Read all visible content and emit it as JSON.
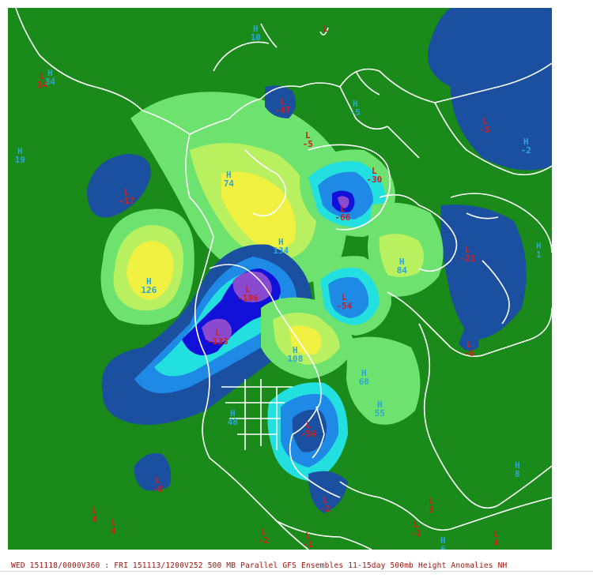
{
  "caption": "WED 151118/0000V360 : FRI 151113/1200V252  500 MB Parallel GFS Ensembles 11-15day 500mb Height Anomalies NH",
  "colors": {
    "background": "#1a8a1a",
    "deep_low": "#8a4ad0",
    "low_core": "#1010d8",
    "low_mid": "#1e8ae6",
    "low_edge": "#1b4fa0",
    "neutral_light": "#22e0e0",
    "high_light": "#6ee26e",
    "high_mid": "#b8f060",
    "high_core": "#f0f040",
    "outline": "#ffffff",
    "high_label": "#2aa6d8",
    "low_label": "#d0201c",
    "caption": "#a0150e"
  },
  "markers": [
    {
      "type": "H",
      "value": "10"
    },
    {
      "type": "L",
      "value": ""
    },
    {
      "type": "L",
      "value": "14"
    },
    {
      "type": "H",
      "value": "34"
    },
    {
      "type": "H",
      "value": "19"
    },
    {
      "type": "L",
      "value": "-17"
    },
    {
      "type": "L",
      "value": "-47"
    },
    {
      "type": "H",
      "value": "-5"
    },
    {
      "type": "L",
      "value": "-5"
    },
    {
      "type": "L",
      "value": "-5"
    },
    {
      "type": "H",
      "value": "-2"
    },
    {
      "type": "H",
      "value": "74"
    },
    {
      "type": "L",
      "value": "-30"
    },
    {
      "type": "L",
      "value": "-66"
    },
    {
      "type": "H",
      "value": "134"
    },
    {
      "type": "H",
      "value": "126"
    },
    {
      "type": "L",
      "value": "-196"
    },
    {
      "type": "L",
      "value": "-133"
    },
    {
      "type": "L",
      "value": "-54"
    },
    {
      "type": "H",
      "value": "84"
    },
    {
      "type": "L",
      "value": "-21"
    },
    {
      "type": "H",
      "value": "1"
    },
    {
      "type": "H",
      "value": "108"
    },
    {
      "type": "H",
      "value": "60"
    },
    {
      "type": "H",
      "value": "55"
    },
    {
      "type": "H",
      "value": "48"
    },
    {
      "type": "L",
      "value": "-56"
    },
    {
      "type": "L",
      "value": "-6"
    },
    {
      "type": "L",
      "value": "-8"
    },
    {
      "type": "H",
      "value": "8"
    },
    {
      "type": "L",
      "value": "-2"
    },
    {
      "type": "L",
      "value": "4"
    },
    {
      "type": "L",
      "value": "4"
    },
    {
      "type": "L",
      "value": "-2"
    },
    {
      "type": "L",
      "value": "-1"
    },
    {
      "type": "L",
      "value": "-2"
    },
    {
      "type": "H",
      "value": "6"
    },
    {
      "type": "L",
      "value": "4"
    },
    {
      "type": "L",
      "value": "3"
    }
  ]
}
